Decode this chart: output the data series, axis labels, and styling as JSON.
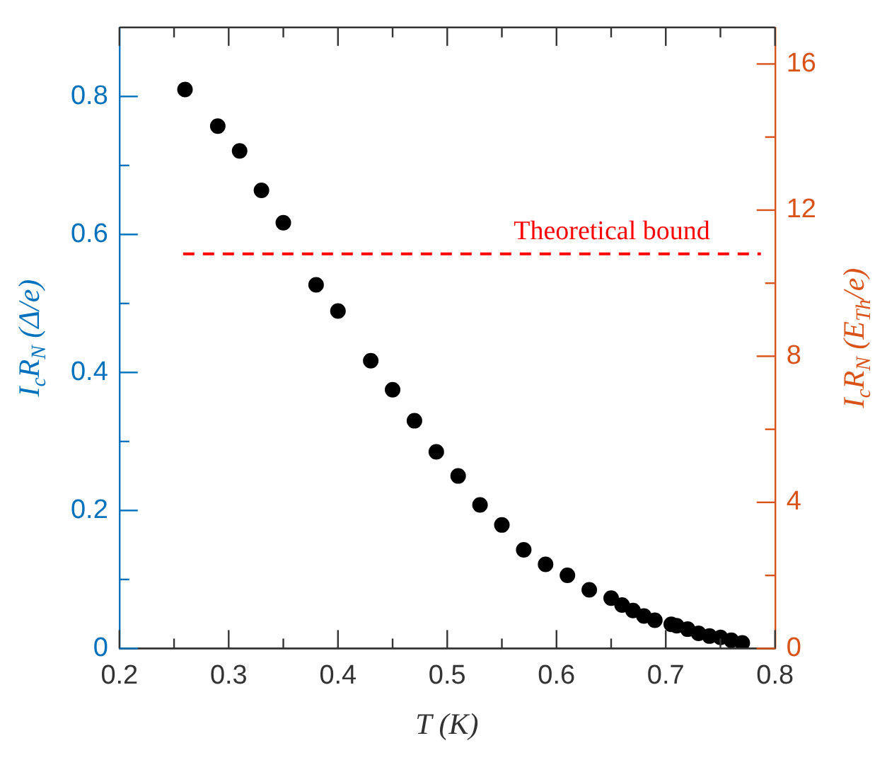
{
  "chart_data": {
    "type": "scatter",
    "xlabel": "T (K)",
    "ylabel": "I$_{c}$R$_{N}$ (Δ/e)",
    "y2label": "I$_{c}$R$_{N}$ (E$_{Th}$/e)",
    "x": [
      0.26,
      0.29,
      0.31,
      0.33,
      0.35,
      0.38,
      0.4,
      0.43,
      0.45,
      0.47,
      0.49,
      0.51,
      0.53,
      0.55,
      0.57,
      0.59,
      0.61,
      0.63,
      0.65,
      0.66,
      0.67,
      0.68,
      0.69,
      0.705,
      0.71,
      0.72,
      0.73,
      0.74,
      0.75,
      0.76,
      0.77
    ],
    "series": [
      {
        "color": "#000000",
        "values": [
          0.81,
          0.757,
          0.721,
          0.664,
          0.617,
          0.527,
          0.489,
          0.417,
          0.375,
          0.33,
          0.285,
          0.25,
          0.208,
          0.179,
          0.143,
          0.122,
          0.106,
          0.085,
          0.073,
          0.063,
          0.055,
          0.047,
          0.041,
          0.035,
          0.033,
          0.028,
          0.022,
          0.018,
          0.016,
          0.012,
          0.008
        ]
      }
    ],
    "xlim": [
      0.2,
      0.8
    ],
    "xticks": [
      0.2,
      {
        "value": 0.25,
        "label": null
      },
      0.3,
      {
        "value": 0.35,
        "label": null
      },
      0.4,
      {
        "value": 0.45,
        "label": null
      },
      0.5,
      {
        "value": 0.55,
        "label": null
      },
      0.6,
      {
        "value": 0.65,
        "label": null
      },
      0.7,
      {
        "value": 0.75,
        "label": null
      },
      0.8
    ],
    "ylim": [
      0,
      0.9
    ],
    "yticks": [
      0,
      {
        "value": 0.1,
        "label": null
      },
      0.2,
      {
        "value": 0.3,
        "label": null
      },
      0.4,
      {
        "value": 0.5,
        "label": null
      },
      0.6,
      {
        "value": 0.7,
        "label": null
      },
      0.8
    ],
    "y2lim": [
      0,
      17
    ],
    "y2ticks": [
      0,
      {
        "value": 2,
        "label": null
      },
      4,
      {
        "value": 6,
        "label": null
      },
      8,
      {
        "value": 10,
        "label": null
      },
      12,
      {
        "value": 14,
        "label": null
      },
      16
    ],
    "ref_lines": [
      {
        "axis": "y2",
        "value": 10.8,
        "label": "Theoretical bound",
        "color": "#ff0000",
        "line_style": "dashed"
      }
    ],
    "marker": "circle",
    "grid": false,
    "legend": false
  }
}
